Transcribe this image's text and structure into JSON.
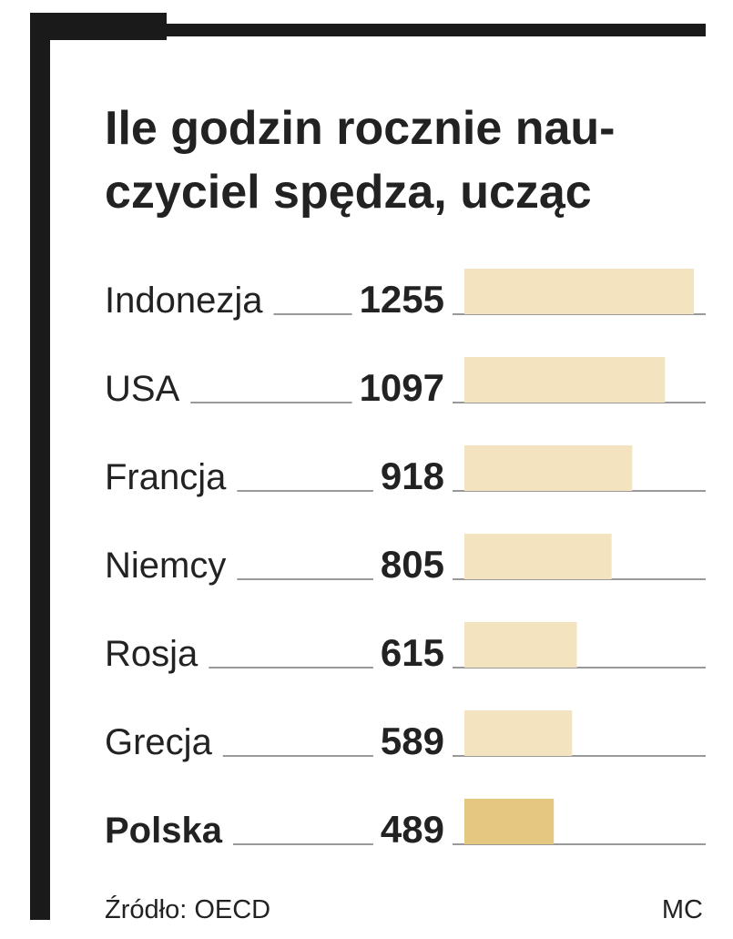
{
  "chart_data": {
    "type": "bar",
    "title": [
      "Ile godzin rocznie nau-",
      "czyciel spędza, ucząc"
    ],
    "categories": [
      "Indonezja",
      "USA",
      "Francja",
      "Niemcy",
      "Rosja",
      "Grecja",
      "Polska"
    ],
    "values": [
      1255,
      1097,
      918,
      805,
      615,
      589,
      489
    ],
    "color": "#f3e4bf",
    "highlight_color": "#e6c77f",
    "highlight": 6,
    "source": "Źródło: OECD",
    "credit": "MC"
  }
}
